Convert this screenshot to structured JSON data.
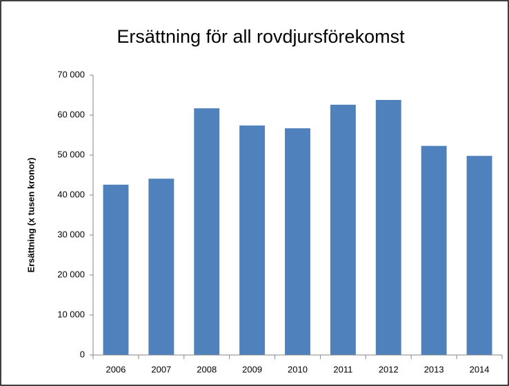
{
  "chart_data": {
    "type": "bar",
    "title": "Ersättning för all rovdjursförekomst",
    "y_label": "Ersättning (x tusen kronor)",
    "categories": [
      "2006",
      "2007",
      "2008",
      "2009",
      "2010",
      "2011",
      "2012",
      "2013",
      "2014"
    ],
    "values": [
      42600,
      44100,
      61700,
      57400,
      56700,
      62600,
      63800,
      52300,
      49800
    ],
    "color": "#4f81bd",
    "ylim": [
      0,
      70000
    ],
    "yticks": [
      0,
      {
        "value": 10000,
        "label": "10 000"
      },
      {
        "value": 20000,
        "label": "20 000"
      },
      {
        "value": 30000,
        "label": "30 000"
      },
      {
        "value": 40000,
        "label": "40 000"
      },
      {
        "value": 50000,
        "label": "50 000"
      },
      {
        "value": 60000,
        "label": "60 000"
      },
      {
        "value": 70000,
        "label": "70 000"
      }
    ],
    "grid": false
  }
}
